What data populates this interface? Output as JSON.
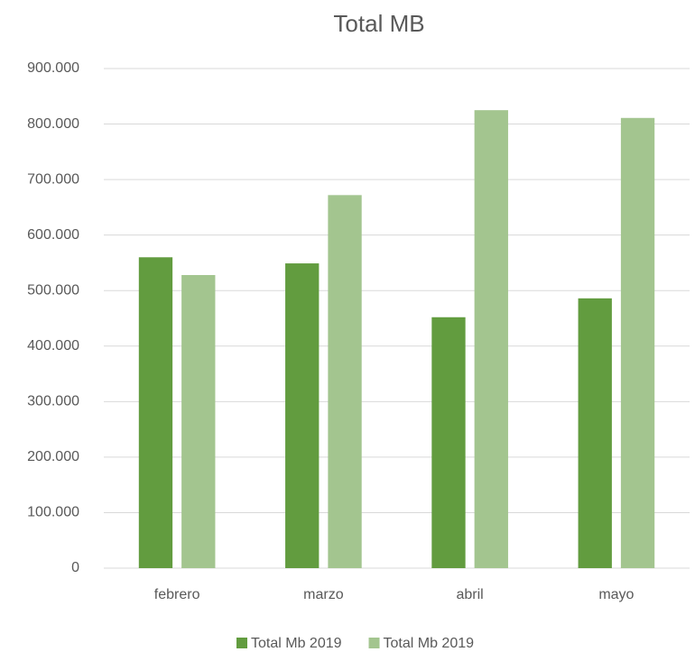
{
  "chart_data": {
    "type": "bar",
    "title": "Total MB",
    "categories": [
      "febrero",
      "marzo",
      "abril",
      "mayo"
    ],
    "series": [
      {
        "name": "Total Mb 2019",
        "color": "#629c3f",
        "values": [
          560000,
          549000,
          452000,
          486000
        ]
      },
      {
        "name": "Total Mb 2019",
        "color": "#a3c58f",
        "values": [
          528000,
          672000,
          825000,
          811000
        ]
      }
    ],
    "ylim": [
      0,
      900000
    ],
    "yticks": [
      0,
      {
        "value": 100000,
        "label": "100.000"
      },
      {
        "value": 200000,
        "label": "200.000"
      },
      {
        "value": 300000,
        "label": "300.000"
      },
      {
        "value": 400000,
        "label": "400.000"
      },
      {
        "value": 500000,
        "label": "500.000"
      },
      {
        "value": 600000,
        "label": "600.000"
      },
      {
        "value": 700000,
        "label": "700.000"
      },
      {
        "value": 800000,
        "label": "800.000"
      },
      {
        "value": 900000,
        "label": "900.000"
      }
    ],
    "grid": true,
    "legend": "bottom"
  }
}
